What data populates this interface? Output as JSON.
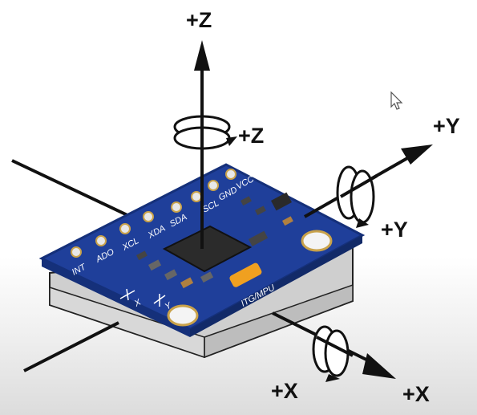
{
  "axes": {
    "z_axis_label": "+Z",
    "z_rotation_label": "+Z",
    "y_axis_label": "+Y",
    "y_rotation_label": "+Y",
    "x_axis_label": "+X",
    "x_rotation_label": "+X"
  },
  "board": {
    "chip_label": "ITG/MPU",
    "pins": [
      "VCC",
      "GND",
      "SCL",
      "SDA",
      "XDA",
      "XCL",
      "ADO",
      "INT"
    ],
    "silkscreen_x": "X",
    "silkscreen_y": "Y"
  },
  "colors": {
    "board": "#1f3f9a",
    "board_edge": "#15307a",
    "chip": "#2b2b2b",
    "accent_orange": "#f0a020",
    "base_block": "#d4d4d4",
    "arrow": "#111111"
  },
  "icons": {
    "cursor": "mouse-pointer-icon"
  }
}
